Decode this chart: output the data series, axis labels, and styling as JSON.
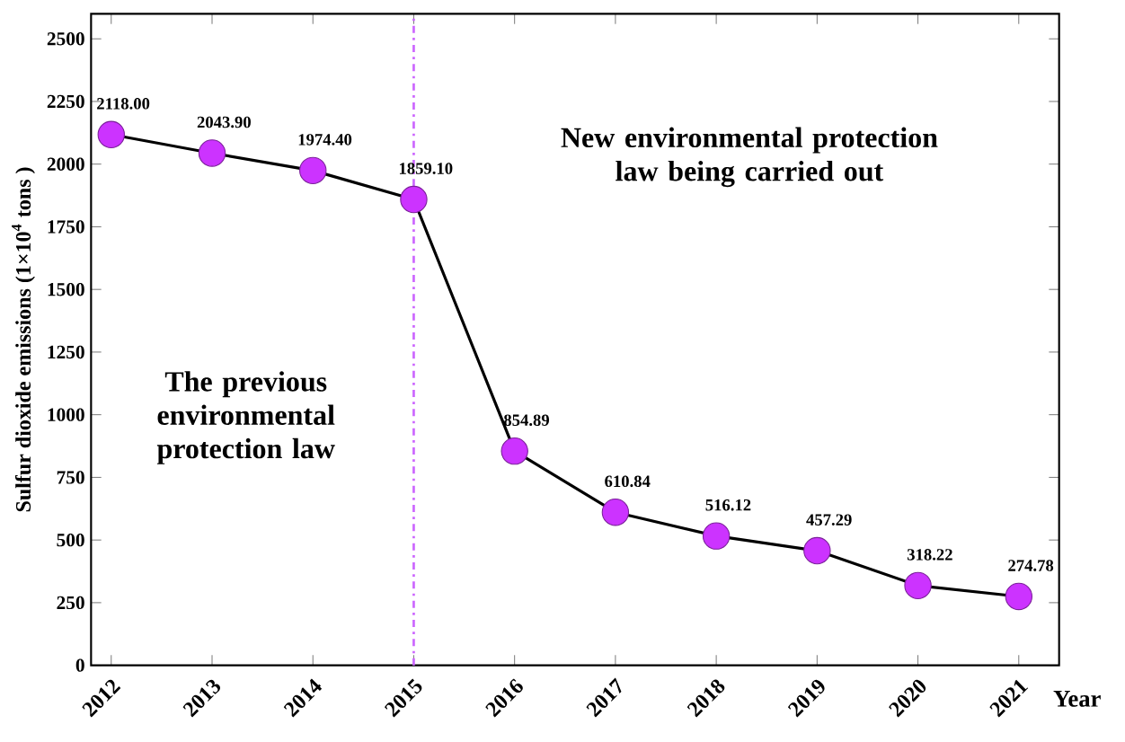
{
  "chart_data": {
    "type": "line",
    "x": [
      2012,
      2013,
      2014,
      2015,
      2016,
      2017,
      2018,
      2019,
      2020,
      2021
    ],
    "series": [
      {
        "color": "#000000",
        "colors": [
          "#cc33ff",
          "#cc33ff",
          "#cc33ff",
          "#cc33ff",
          "#cc33ff",
          "#cc33ff",
          "#cc33ff",
          "#cc33ff",
          "#cc33ff",
          "#cc33ff"
        ],
        "values": [
          2118.0,
          2043.9,
          1974.4,
          1859.1,
          854.89,
          610.84,
          516.12,
          457.29,
          318.22,
          274.78
        ],
        "value_labels": [
          "2118.00",
          "2043.90",
          "1974.40",
          "1859.10",
          "854.89",
          "610.84",
          "516.12",
          "457.29",
          "318.22",
          "274.78"
        ]
      }
    ],
    "marker": "circle",
    "line_style": "solid",
    "xlabel": "Year",
    "ylabel": "Sulfur dioxide emissions (1×10$^{4}$ tons )",
    "xlim": [
      2011.8,
      2021.4
    ],
    "ylim": [
      0,
      2600
    ],
    "xticks": [
      2012,
      2013,
      2014,
      2015,
      2016,
      2017,
      2018,
      2019,
      2020,
      2021
    ],
    "yticks": [
      0,
      250,
      500,
      750,
      1000,
      1250,
      1500,
      1750,
      2000,
      2250,
      2500
    ],
    "ref_lines": [
      {
        "axis": "x",
        "value": 2015,
        "color": "#cc66ff",
        "line_style": "dashdotted"
      }
    ],
    "annotations": [
      "The previous environmental protection law",
      "New environmental protection law being carried out"
    ]
  }
}
